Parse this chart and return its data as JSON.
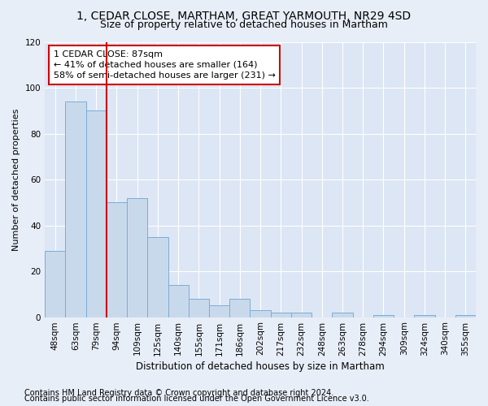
{
  "title1": "1, CEDAR CLOSE, MARTHAM, GREAT YARMOUTH, NR29 4SD",
  "title2": "Size of property relative to detached houses in Martham",
  "xlabel": "Distribution of detached houses by size in Martham",
  "ylabel": "Number of detached properties",
  "categories": [
    "48sqm",
    "63sqm",
    "79sqm",
    "94sqm",
    "109sqm",
    "125sqm",
    "140sqm",
    "155sqm",
    "171sqm",
    "186sqm",
    "202sqm",
    "217sqm",
    "232sqm",
    "248sqm",
    "263sqm",
    "278sqm",
    "294sqm",
    "309sqm",
    "324sqm",
    "340sqm",
    "355sqm"
  ],
  "values": [
    29,
    94,
    90,
    50,
    52,
    35,
    14,
    8,
    5,
    8,
    3,
    2,
    2,
    0,
    2,
    0,
    1,
    0,
    1,
    0,
    1
  ],
  "bar_color": "#c9d9ec",
  "bar_edge_color": "#7aadd4",
  "vline_x": 2.5,
  "vline_color": "#cc0000",
  "annotation_line1": "1 CEDAR CLOSE: 87sqm",
  "annotation_line2": "← 41% of detached houses are smaller (164)",
  "annotation_line3": "58% of semi-detached houses are larger (231) →",
  "annotation_box_color": "#ffffff",
  "annotation_box_edge_color": "#cc0000",
  "ylim": [
    0,
    120
  ],
  "yticks": [
    0,
    20,
    40,
    60,
    80,
    100,
    120
  ],
  "plot_bg_color": "#dce6f5",
  "fig_bg_color": "#e8eef8",
  "grid_color": "#ffffff",
  "footer1": "Contains HM Land Registry data © Crown copyright and database right 2024.",
  "footer2": "Contains public sector information licensed under the Open Government Licence v3.0.",
  "title1_fontsize": 10,
  "title2_fontsize": 9,
  "xlabel_fontsize": 8.5,
  "ylabel_fontsize": 8,
  "tick_fontsize": 7.5,
  "annotation_fontsize": 8,
  "footer_fontsize": 7
}
